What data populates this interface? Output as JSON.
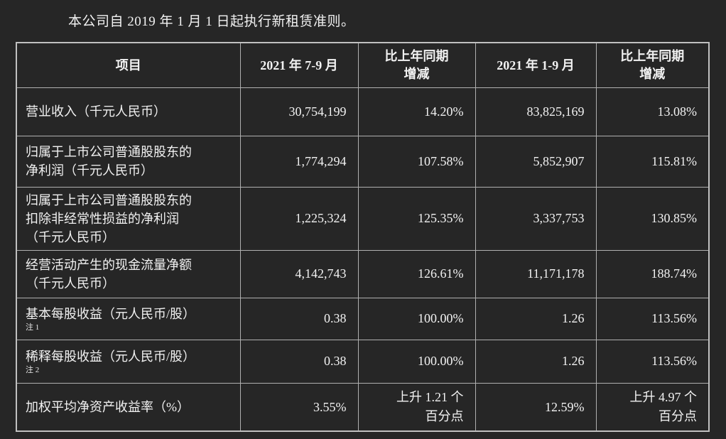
{
  "intro": "本公司自 2019 年 1 月 1 日起执行新租赁准则。",
  "colors": {
    "background": "#262626",
    "border": "#b0b0b0",
    "text": "#f2f2f2"
  },
  "table": {
    "headers": [
      "项目",
      "2021 年 7-9 月",
      "比上年同期\n增减",
      "2021 年 1-9 月",
      "比上年同期\n增减"
    ],
    "rows": [
      {
        "label": "营业收入（千元人民币）",
        "note": "",
        "q3_2021": "30,754,199",
        "q3_yoy": "14.20%",
        "m9_2021": "83,825,169",
        "m9_yoy": "13.08%"
      },
      {
        "label": "归属于上市公司普通股股东的\n净利润（千元人民币）",
        "note": "",
        "q3_2021": "1,774,294",
        "q3_yoy": "107.58%",
        "m9_2021": "5,852,907",
        "m9_yoy": "115.81%"
      },
      {
        "label": "归属于上市公司普通股股东的\n扣除非经常性损益的净利润\n（千元人民币）",
        "note": "",
        "q3_2021": "1,225,324",
        "q3_yoy": "125.35%",
        "m9_2021": "3,337,753",
        "m9_yoy": "130.85%"
      },
      {
        "label": "经营活动产生的现金流量净额\n（千元人民币）",
        "note": "",
        "q3_2021": "4,142,743",
        "q3_yoy": "126.61%",
        "m9_2021": "11,171,178",
        "m9_yoy": "188.74%"
      },
      {
        "label": "基本每股收益（元人民币/股）",
        "note": "注 1",
        "q3_2021": "0.38",
        "q3_yoy": "100.00%",
        "m9_2021": "1.26",
        "m9_yoy": "113.56%"
      },
      {
        "label": "稀释每股收益（元人民币/股）",
        "note": "注 2",
        "q3_2021": "0.38",
        "q3_yoy": "100.00%",
        "m9_2021": "1.26",
        "m9_yoy": "113.56%"
      },
      {
        "label": "加权平均净资产收益率（%）",
        "note": "",
        "q3_2021": "3.55%",
        "q3_yoy": "上升 1.21 个\n百分点",
        "m9_2021": "12.59%",
        "m9_yoy": "上升 4.97 个\n百分点"
      }
    ]
  }
}
